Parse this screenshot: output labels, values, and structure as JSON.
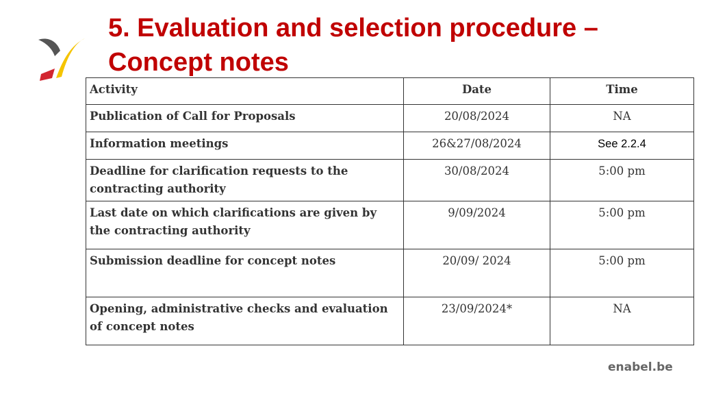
{
  "header": {
    "title": [
      "5. Evaluation and selection procedure –",
      "Concept notes"
    ]
  },
  "table": {
    "header": [
      "Activity",
      "Date",
      "Time"
    ],
    "rows": [
      [
        "Publication of Call for Proposals",
        "20/08/2024",
        "NA"
      ],
      [
        "Information meetings",
        "26&27/08/2024",
        "See 2.2.4"
      ],
      [
        "Deadline for clarification requests to the contracting authority",
        "30/08/2024",
        "5:00 pm"
      ],
      [
        "Last date on which clarifications are given by the contracting authority",
        "9/09/2024",
        "5:00 pm"
      ],
      [
        "Submission deadline for concept notes",
        "20/09/ 2024",
        "5:00 pm"
      ],
      [
        "Opening, administrative checks and evaluation of concept notes",
        "23/09/2024*",
        "NA"
      ]
    ]
  },
  "footer": {
    "site": "enabel.be"
  }
}
